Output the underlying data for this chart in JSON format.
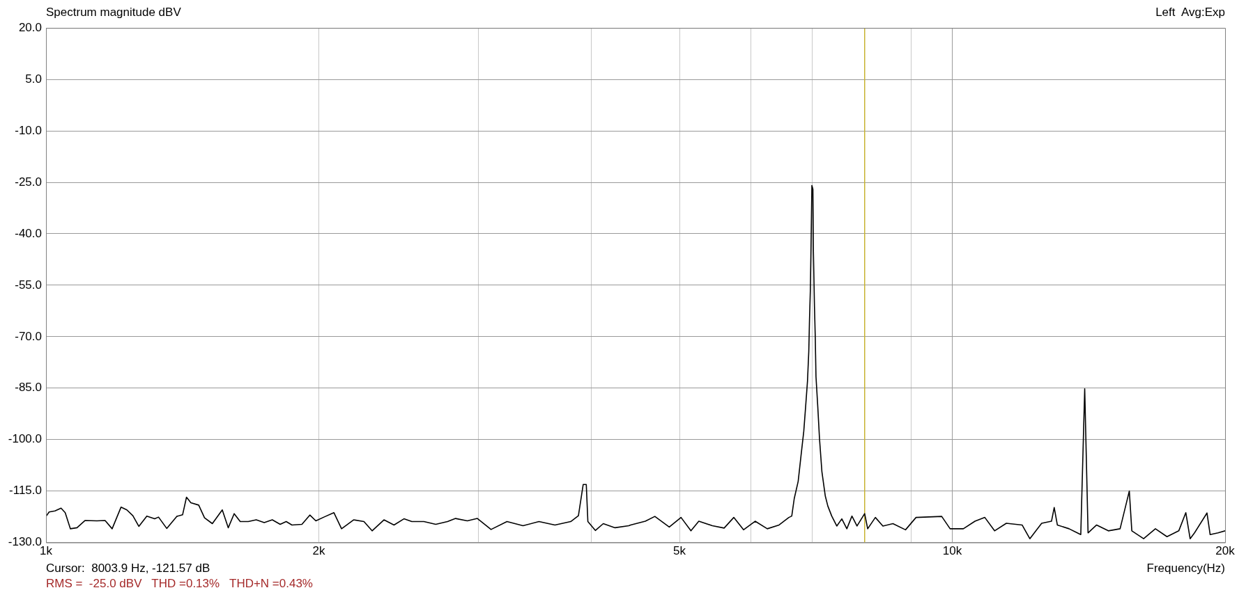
{
  "chart_data": {
    "type": "line",
    "title": "Spectrum magnitude dBV",
    "xlabel": "Frequency(Hz)",
    "annotations": [
      "Left  Avg:Exp",
      "Cursor:  8003.9 Hz, -121.57 dB",
      "RMS =  -25.0 dBV   THD =0.13%   THD+N =0.43%"
    ],
    "log": "x",
    "xlim": [
      1000,
      20000
    ],
    "xticks": [
      {
        "value": 1000,
        "label": "1k"
      },
      {
        "value": 2000,
        "label": "2k"
      },
      {
        "value": 3000,
        "label": null
      },
      {
        "value": 4000,
        "label": null
      },
      {
        "value": 5000,
        "label": "5k"
      },
      {
        "value": 6000,
        "label": null
      },
      {
        "value": 7000,
        "label": null
      },
      {
        "value": 8000,
        "label": null
      },
      {
        "value": 9000,
        "label": null
      },
      {
        "value": 10000,
        "label": "10k"
      },
      {
        "value": 20000,
        "label": "20k"
      }
    ],
    "ylim": [
      -130,
      20
    ],
    "yticks": [
      {
        "value": 20,
        "label": "20.0"
      },
      {
        "value": 5,
        "label": "5.0"
      },
      {
        "value": -10,
        "label": "-10.0"
      },
      {
        "value": -25,
        "label": "-25.0"
      },
      {
        "value": -40,
        "label": "-40.0"
      },
      {
        "value": -55,
        "label": "-55.0"
      },
      {
        "value": -70,
        "label": "-70.0"
      },
      {
        "value": -85,
        "label": "-85.0"
      },
      {
        "value": -100,
        "label": "-100.0"
      },
      {
        "value": -115,
        "label": "-115.0"
      },
      {
        "value": -130,
        "label": "-130.0"
      }
    ],
    "grid": true,
    "marker": "none",
    "ref_lines": [
      {
        "axis": "x",
        "value": 8003.9,
        "color": "#c8b432"
      }
    ],
    "series": [
      {
        "color": "#000000",
        "x": [
          1000,
          1008,
          1023,
          1039,
          1050,
          1064,
          1082,
          1104,
          1138,
          1162,
          1183,
          1210,
          1228,
          1247,
          1266,
          1292,
          1318,
          1331,
          1359,
          1394,
          1415,
          1429,
          1445,
          1474,
          1496,
          1526,
          1565,
          1589,
          1613,
          1638,
          1672,
          1706,
          1741,
          1777,
          1813,
          1841,
          1868,
          1916,
          1955,
          1985,
          2026,
          2078,
          2119,
          2185,
          2243,
          2290,
          2360,
          2421,
          2483,
          2533,
          2612,
          2692,
          2774,
          2831,
          2917,
          2992,
          3098,
          3226,
          3360,
          3499,
          3644,
          3793,
          3868,
          3915,
          3946,
          3962,
          4038,
          4120,
          4245,
          4396,
          4416,
          4585,
          4697,
          4872,
          5020,
          5148,
          5252,
          5436,
          5601,
          5740,
          5884,
          6060,
          6250,
          6440,
          6602,
          6651,
          6693,
          6760,
          6808,
          6857,
          6890,
          6922,
          6945,
          6958,
          6972,
          6982,
          6991,
          7000,
          7018,
          7027,
          7046,
          7060,
          7073,
          7105,
          7137,
          7180,
          7243,
          7290,
          7362,
          7457,
          7553,
          7650,
          7750,
          7850,
          8003.9,
          8066,
          8225,
          8384,
          8600,
          8880,
          9120,
          9735,
          9945,
          10285,
          10594,
          10862,
          11135,
          11472,
          11942,
          12178,
          12550,
          12867,
          12956,
          13060,
          13455,
          13861,
          14000,
          14120,
          14430,
          14866,
          15317,
          15680,
          15780,
          16260,
          16755,
          17255,
          17780,
          18100,
          18300,
          18505,
          19100,
          19255,
          19645,
          20000
        ],
        "values": [
          -122.4,
          -121.1,
          -120.8,
          -120.0,
          -121.3,
          -126.0,
          -125.7,
          -123.6,
          -123.7,
          -123.6,
          -126.0,
          -119.7,
          -120.5,
          -122.2,
          -125.3,
          -122.3,
          -123.1,
          -122.6,
          -125.9,
          -122.4,
          -121.9,
          -116.8,
          -118.4,
          -119.1,
          -122.8,
          -124.5,
          -120.5,
          -125.7,
          -121.6,
          -123.9,
          -123.9,
          -123.4,
          -124.2,
          -123.4,
          -124.7,
          -123.9,
          -124.9,
          -124.7,
          -122.0,
          -123.7,
          -122.6,
          -121.3,
          -126.0,
          -123.4,
          -123.9,
          -126.6,
          -123.4,
          -124.9,
          -123.1,
          -123.9,
          -123.9,
          -124.7,
          -123.9,
          -123.0,
          -123.7,
          -123.0,
          -126.2,
          -123.9,
          -125.1,
          -123.9,
          -124.9,
          -123.9,
          -122.2,
          -113.1,
          -113.1,
          -123.9,
          -126.5,
          -124.5,
          -125.7,
          -125.1,
          -124.9,
          -123.8,
          -122.4,
          -125.5,
          -122.7,
          -126.6,
          -123.8,
          -125.1,
          -125.8,
          -122.7,
          -126.3,
          -123.8,
          -126.0,
          -124.9,
          -122.7,
          -122.3,
          -117.2,
          -112.2,
          -104.9,
          -97.6,
          -90.3,
          -83.0,
          -74.3,
          -64.8,
          -56.8,
          -46.6,
          -36.4,
          -25.9,
          -27.0,
          -45.2,
          -61.2,
          -69.9,
          -81.6,
          -90.3,
          -99.8,
          -109.3,
          -116.5,
          -119.4,
          -122.3,
          -125.2,
          -123.1,
          -126.0,
          -122.3,
          -125.2,
          -121.6,
          -126.0,
          -122.7,
          -125.2,
          -124.5,
          -126.3,
          -122.7,
          -122.4,
          -126.0,
          -126.0,
          -123.8,
          -122.7,
          -126.6,
          -124.4,
          -124.9,
          -128.9,
          -124.4,
          -123.8,
          -119.8,
          -124.9,
          -126.0,
          -127.7,
          -85.2,
          -127.2,
          -124.9,
          -126.6,
          -126.0,
          -115.0,
          -126.6,
          -128.9,
          -126.0,
          -128.3,
          -126.6,
          -121.3,
          -128.9,
          -127.2,
          -121.4,
          -127.7,
          -127.2,
          -126.6
        ]
      }
    ]
  }
}
